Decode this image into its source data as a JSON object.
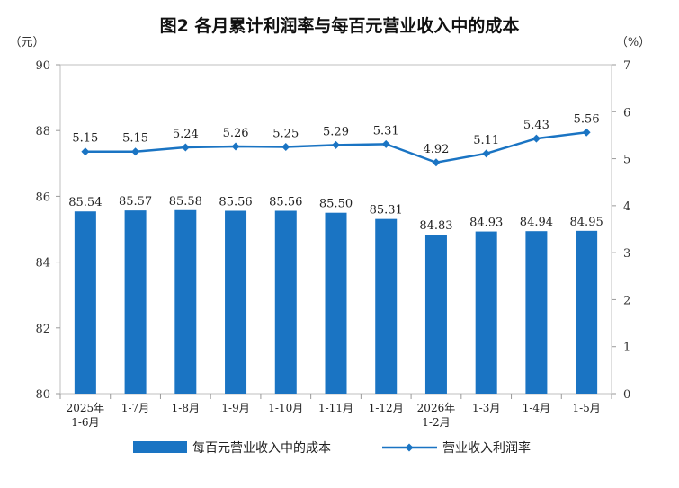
{
  "title": "图2  各月累计利润率与每百元营业收入中的成本",
  "chart_data": {
    "type": "bar+line",
    "title": "图2  各月累计利润率与每百元营业收入中的成本",
    "categories": [
      [
        "2025年",
        "1-6月"
      ],
      [
        "1-7月"
      ],
      [
        "1-8月"
      ],
      [
        "1-9月"
      ],
      [
        "1-10月"
      ],
      [
        "1-11月"
      ],
      [
        "1-12月"
      ],
      [
        "2026年",
        "1-2月"
      ],
      [
        "1-3月"
      ],
      [
        "1-4月"
      ],
      [
        "1-5月"
      ]
    ],
    "left_axis": {
      "unit": "（元）",
      "min": 80,
      "max": 90,
      "ticks": [
        80,
        82,
        84,
        86,
        88,
        90
      ]
    },
    "right_axis": {
      "unit": "（%）",
      "min": 0,
      "max": 7,
      "ticks": [
        0,
        1,
        2,
        3,
        4,
        5,
        6,
        7
      ]
    },
    "series": [
      {
        "name": "每百元营业收入中的成本",
        "type": "bar",
        "axis": "left",
        "color": "#1a74c3",
        "values": [
          85.54,
          85.57,
          85.58,
          85.56,
          85.56,
          85.5,
          85.31,
          84.83,
          84.93,
          84.94,
          84.95
        ],
        "labels": [
          "85.54",
          "85.57",
          "85.58",
          "85.56",
          "85.56",
          "85.50",
          "85.31",
          "84.83",
          "84.93",
          "84.94",
          "84.95"
        ]
      },
      {
        "name": "营业收入利润率",
        "type": "line",
        "axis": "right",
        "color": "#1a74c3",
        "values": [
          5.15,
          5.15,
          5.24,
          5.26,
          5.25,
          5.29,
          5.31,
          4.92,
          5.11,
          5.43,
          5.56
        ],
        "labels": [
          "5.15",
          "5.15",
          "5.24",
          "5.26",
          "5.25",
          "5.29",
          "5.31",
          "4.92",
          "5.11",
          "5.43",
          "5.56"
        ]
      }
    ],
    "legend_position": "bottom",
    "grid": false
  }
}
